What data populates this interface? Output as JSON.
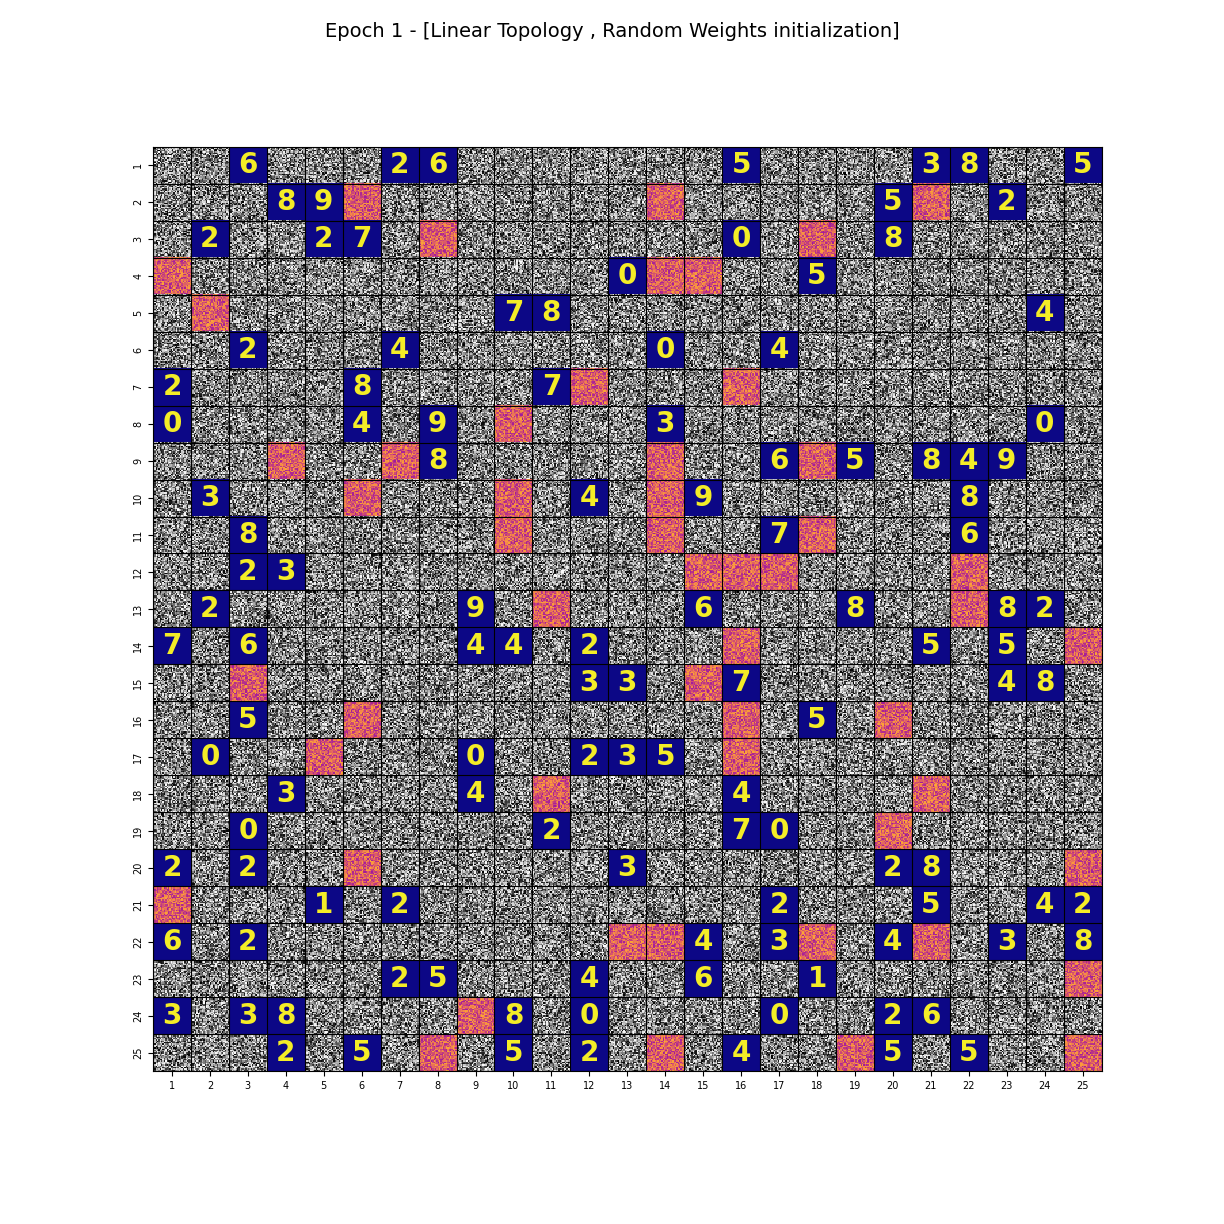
{
  "chart_data": {
    "type": "image_grid",
    "title": "Epoch 1 - [Linear Topology , Random Weights initialization]",
    "xlim": [
      0.5,
      25.5
    ],
    "ylim": [
      25.5,
      0.5
    ],
    "xticks": [
      1,
      2,
      3,
      4,
      5,
      6,
      7,
      8,
      9,
      10,
      11,
      12,
      13,
      14,
      15,
      16,
      17,
      18,
      19,
      20,
      21,
      22,
      23,
      24,
      25
    ],
    "yticks": [
      1,
      2,
      3,
      4,
      5,
      6,
      7,
      8,
      9,
      10,
      11,
      12,
      13,
      14,
      15,
      16,
      17,
      18,
      19,
      20,
      21,
      22,
      23,
      24,
      25
    ],
    "digit_cells": [
      {
        "row": 1,
        "col": 3,
        "label": "6"
      },
      {
        "row": 1,
        "col": 7,
        "label": "2"
      },
      {
        "row": 1,
        "col": 8,
        "label": "6"
      },
      {
        "row": 1,
        "col": 16,
        "label": "5"
      },
      {
        "row": 1,
        "col": 21,
        "label": "3"
      },
      {
        "row": 1,
        "col": 22,
        "label": "8"
      },
      {
        "row": 1,
        "col": 25,
        "label": "5"
      },
      {
        "row": 2,
        "col": 4,
        "label": "8"
      },
      {
        "row": 2,
        "col": 5,
        "label": "9"
      },
      {
        "row": 2,
        "col": 20,
        "label": "5"
      },
      {
        "row": 2,
        "col": 23,
        "label": "2"
      },
      {
        "row": 3,
        "col": 2,
        "label": "2"
      },
      {
        "row": 3,
        "col": 5,
        "label": "2"
      },
      {
        "row": 3,
        "col": 6,
        "label": "7"
      },
      {
        "row": 3,
        "col": 16,
        "label": "0"
      },
      {
        "row": 3,
        "col": 20,
        "label": "8"
      },
      {
        "row": 4,
        "col": 13,
        "label": "0"
      },
      {
        "row": 4,
        "col": 18,
        "label": "5"
      },
      {
        "row": 5,
        "col": 10,
        "label": "7"
      },
      {
        "row": 5,
        "col": 11,
        "label": "8"
      },
      {
        "row": 5,
        "col": 24,
        "label": "4"
      },
      {
        "row": 6,
        "col": 3,
        "label": "2"
      },
      {
        "row": 6,
        "col": 7,
        "label": "4"
      },
      {
        "row": 6,
        "col": 14,
        "label": "0"
      },
      {
        "row": 6,
        "col": 17,
        "label": "4"
      },
      {
        "row": 7,
        "col": 1,
        "label": "2"
      },
      {
        "row": 7,
        "col": 6,
        "label": "8"
      },
      {
        "row": 7,
        "col": 11,
        "label": "7"
      },
      {
        "row": 8,
        "col": 1,
        "label": "0"
      },
      {
        "row": 8,
        "col": 6,
        "label": "4"
      },
      {
        "row": 8,
        "col": 8,
        "label": "9"
      },
      {
        "row": 8,
        "col": 14,
        "label": "3"
      },
      {
        "row": 8,
        "col": 24,
        "label": "0"
      },
      {
        "row": 9,
        "col": 8,
        "label": "8"
      },
      {
        "row": 9,
        "col": 17,
        "label": "6"
      },
      {
        "row": 9,
        "col": 19,
        "label": "5"
      },
      {
        "row": 9,
        "col": 21,
        "label": "8"
      },
      {
        "row": 9,
        "col": 22,
        "label": "4"
      },
      {
        "row": 9,
        "col": 23,
        "label": "9"
      },
      {
        "row": 10,
        "col": 2,
        "label": "3"
      },
      {
        "row": 10,
        "col": 12,
        "label": "4"
      },
      {
        "row": 10,
        "col": 15,
        "label": "9"
      },
      {
        "row": 10,
        "col": 22,
        "label": "8"
      },
      {
        "row": 11,
        "col": 3,
        "label": "8"
      },
      {
        "row": 11,
        "col": 17,
        "label": "7"
      },
      {
        "row": 11,
        "col": 22,
        "label": "6"
      },
      {
        "row": 12,
        "col": 3,
        "label": "2"
      },
      {
        "row": 12,
        "col": 4,
        "label": "3"
      },
      {
        "row": 13,
        "col": 2,
        "label": "2"
      },
      {
        "row": 13,
        "col": 9,
        "label": "9"
      },
      {
        "row": 13,
        "col": 15,
        "label": "6"
      },
      {
        "row": 13,
        "col": 19,
        "label": "8"
      },
      {
        "row": 13,
        "col": 23,
        "label": "8"
      },
      {
        "row": 13,
        "col": 24,
        "label": "2"
      },
      {
        "row": 14,
        "col": 1,
        "label": "7"
      },
      {
        "row": 14,
        "col": 3,
        "label": "6"
      },
      {
        "row": 14,
        "col": 9,
        "label": "4"
      },
      {
        "row": 14,
        "col": 10,
        "label": "4"
      },
      {
        "row": 14,
        "col": 12,
        "label": "2"
      },
      {
        "row": 14,
        "col": 21,
        "label": "5"
      },
      {
        "row": 14,
        "col": 23,
        "label": "5"
      },
      {
        "row": 15,
        "col": 12,
        "label": "3"
      },
      {
        "row": 15,
        "col": 13,
        "label": "3"
      },
      {
        "row": 15,
        "col": 16,
        "label": "7"
      },
      {
        "row": 15,
        "col": 23,
        "label": "4"
      },
      {
        "row": 15,
        "col": 24,
        "label": "8"
      },
      {
        "row": 16,
        "col": 3,
        "label": "5"
      },
      {
        "row": 16,
        "col": 18,
        "label": "5"
      },
      {
        "row": 17,
        "col": 2,
        "label": "0"
      },
      {
        "row": 17,
        "col": 9,
        "label": "0"
      },
      {
        "row": 17,
        "col": 12,
        "label": "2"
      },
      {
        "row": 17,
        "col": 13,
        "label": "3"
      },
      {
        "row": 17,
        "col": 14,
        "label": "5"
      },
      {
        "row": 18,
        "col": 4,
        "label": "3"
      },
      {
        "row": 18,
        "col": 9,
        "label": "4"
      },
      {
        "row": 18,
        "col": 16,
        "label": "4"
      },
      {
        "row": 19,
        "col": 3,
        "label": "0"
      },
      {
        "row": 19,
        "col": 11,
        "label": "2"
      },
      {
        "row": 19,
        "col": 16,
        "label": "7"
      },
      {
        "row": 19,
        "col": 17,
        "label": "0"
      },
      {
        "row": 20,
        "col": 1,
        "label": "2"
      },
      {
        "row": 20,
        "col": 3,
        "label": "2"
      },
      {
        "row": 20,
        "col": 13,
        "label": "3"
      },
      {
        "row": 20,
        "col": 20,
        "label": "2"
      },
      {
        "row": 20,
        "col": 21,
        "label": "8"
      },
      {
        "row": 21,
        "col": 5,
        "label": "1"
      },
      {
        "row": 21,
        "col": 7,
        "label": "2"
      },
      {
        "row": 21,
        "col": 17,
        "label": "2"
      },
      {
        "row": 21,
        "col": 21,
        "label": "5"
      },
      {
        "row": 21,
        "col": 24,
        "label": "4"
      },
      {
        "row": 21,
        "col": 25,
        "label": "2"
      },
      {
        "row": 22,
        "col": 1,
        "label": "6"
      },
      {
        "row": 22,
        "col": 3,
        "label": "2"
      },
      {
        "row": 22,
        "col": 15,
        "label": "4"
      },
      {
        "row": 22,
        "col": 17,
        "label": "3"
      },
      {
        "row": 22,
        "col": 20,
        "label": "4"
      },
      {
        "row": 22,
        "col": 23,
        "label": "3"
      },
      {
        "row": 22,
        "col": 25,
        "label": "8"
      },
      {
        "row": 23,
        "col": 7,
        "label": "2"
      },
      {
        "row": 23,
        "col": 8,
        "label": "5"
      },
      {
        "row": 23,
        "col": 12,
        "label": "4"
      },
      {
        "row": 23,
        "col": 15,
        "label": "6"
      },
      {
        "row": 23,
        "col": 18,
        "label": "1"
      },
      {
        "row": 24,
        "col": 1,
        "label": "3"
      },
      {
        "row": 24,
        "col": 3,
        "label": "3"
      },
      {
        "row": 24,
        "col": 4,
        "label": "8"
      },
      {
        "row": 24,
        "col": 10,
        "label": "8"
      },
      {
        "row": 24,
        "col": 12,
        "label": "0"
      },
      {
        "row": 24,
        "col": 17,
        "label": "0"
      },
      {
        "row": 24,
        "col": 20,
        "label": "2"
      },
      {
        "row": 24,
        "col": 21,
        "label": "6"
      },
      {
        "row": 25,
        "col": 4,
        "label": "2"
      },
      {
        "row": 25,
        "col": 6,
        "label": "5"
      },
      {
        "row": 25,
        "col": 10,
        "label": "5"
      },
      {
        "row": 25,
        "col": 12,
        "label": "2"
      },
      {
        "row": 25,
        "col": 16,
        "label": "4"
      },
      {
        "row": 25,
        "col": 20,
        "label": "5"
      },
      {
        "row": 25,
        "col": 22,
        "label": "5"
      }
    ],
    "noise_patch_cells": [
      [
        2,
        6
      ],
      [
        2,
        14
      ],
      [
        2,
        21
      ],
      [
        3,
        8
      ],
      [
        3,
        18
      ],
      [
        4,
        1
      ],
      [
        4,
        14
      ],
      [
        4,
        15
      ],
      [
        5,
        2
      ],
      [
        7,
        12
      ],
      [
        7,
        16
      ],
      [
        8,
        10
      ],
      [
        9,
        4
      ],
      [
        9,
        7
      ],
      [
        9,
        14
      ],
      [
        9,
        18
      ],
      [
        10,
        6
      ],
      [
        10,
        10
      ],
      [
        10,
        14
      ],
      [
        11,
        10
      ],
      [
        11,
        14
      ],
      [
        11,
        18
      ],
      [
        12,
        15
      ],
      [
        12,
        16
      ],
      [
        12,
        17
      ],
      [
        12,
        22
      ],
      [
        13,
        11
      ],
      [
        13,
        22
      ],
      [
        14,
        16
      ],
      [
        14,
        25
      ],
      [
        15,
        3
      ],
      [
        15,
        15
      ],
      [
        16,
        6
      ],
      [
        16,
        16
      ],
      [
        16,
        20
      ],
      [
        17,
        5
      ],
      [
        17,
        16
      ],
      [
        18,
        11
      ],
      [
        18,
        21
      ],
      [
        19,
        20
      ],
      [
        20,
        6
      ],
      [
        20,
        25
      ],
      [
        21,
        1
      ],
      [
        22,
        13
      ],
      [
        22,
        14
      ],
      [
        22,
        18
      ],
      [
        22,
        21
      ],
      [
        23,
        25
      ],
      [
        24,
        9
      ],
      [
        25,
        8
      ],
      [
        25,
        14
      ],
      [
        25,
        19
      ],
      [
        25,
        25
      ]
    ]
  }
}
